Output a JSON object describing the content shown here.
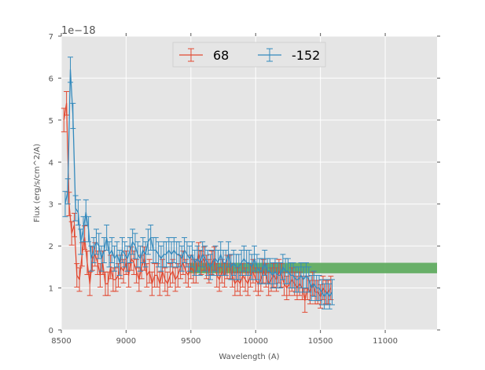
{
  "chart_data": {
    "type": "line",
    "xlabel": "Wavelength (A)",
    "ylabel": "Flux (erg/s/cm^2/A)",
    "offset_text": "1e−18",
    "xlim": [
      8500,
      11400
    ],
    "ylim": [
      0,
      7
    ],
    "x_ticks": [
      8500,
      9000,
      9500,
      10000,
      10500,
      11000
    ],
    "y_ticks": [
      0,
      1,
      2,
      3,
      4,
      5,
      6,
      7
    ],
    "grid": true,
    "legend_position": "top-center",
    "band": {
      "x_start": 9490,
      "x_end": 11400,
      "y_low": 1.35,
      "y_high": 1.6,
      "color": "#5aa85a"
    },
    "series": [
      {
        "name": "68",
        "color": "#e24a33",
        "x_start": 8520,
        "x_step": 20,
        "error": 0.28,
        "values": [
          5.0,
          5.4,
          3.0,
          2.3,
          2.5,
          1.3,
          1.2,
          1.8,
          2.2,
          1.6,
          1.1,
          1.7,
          1.8,
          1.6,
          1.3,
          1.6,
          1.1,
          1.1,
          1.5,
          1.2,
          1.2,
          1.3,
          1.5,
          1.4,
          1.6,
          1.3,
          1.7,
          1.6,
          1.4,
          1.2,
          1.5,
          1.7,
          1.3,
          1.4,
          1.1,
          1.3,
          1.3,
          1.1,
          1.4,
          1.2,
          1.1,
          1.3,
          1.4,
          1.2,
          1.3,
          1.5,
          1.6,
          1.4,
          1.3,
          1.5,
          1.4,
          1.4,
          1.8,
          1.6,
          1.7,
          1.5,
          1.4,
          1.6,
          1.7,
          1.3,
          1.2,
          1.4,
          1.3,
          1.5,
          1.5,
          1.3,
          1.1,
          1.2,
          1.1,
          1.3,
          1.2,
          1.1,
          1.3,
          1.4,
          1.2,
          1.1,
          1.2,
          1.4,
          1.3,
          1.1,
          1.2,
          1.3,
          1.2,
          1.4,
          1.3,
          1.1,
          1.0,
          1.1,
          1.2,
          1.1,
          1.0,
          1.1,
          1.0,
          0.7,
          1.0,
          0.9,
          1.1,
          0.9,
          0.9,
          0.8,
          1.0,
          0.9,
          0.9,
          1.0
        ]
      },
      {
        "name": "-152",
        "color": "#348abd",
        "x_start": 8530,
        "x_step": 20,
        "error": 0.3,
        "values": [
          3.0,
          3.3,
          6.2,
          5.1,
          2.9,
          2.8,
          2.1,
          2.4,
          2.8,
          2.4,
          1.7,
          1.9,
          2.1,
          2.0,
          1.7,
          1.9,
          2.2,
          1.8,
          1.9,
          1.7,
          1.8,
          1.6,
          1.9,
          1.8,
          1.7,
          1.9,
          2.1,
          2.0,
          1.8,
          1.7,
          1.9,
          1.8,
          2.1,
          2.2,
          1.9,
          1.9,
          1.8,
          1.7,
          1.8,
          1.8,
          1.9,
          1.8,
          1.9,
          1.8,
          1.8,
          1.7,
          1.9,
          1.8,
          1.7,
          1.8,
          1.6,
          1.7,
          1.6,
          1.8,
          1.7,
          1.6,
          1.5,
          1.6,
          1.7,
          1.6,
          1.8,
          1.6,
          1.6,
          1.8,
          1.5,
          1.6,
          1.5,
          1.5,
          1.6,
          1.7,
          1.6,
          1.6,
          1.5,
          1.7,
          1.5,
          1.4,
          1.4,
          1.6,
          1.4,
          1.4,
          1.3,
          1.4,
          1.3,
          1.3,
          1.5,
          1.4,
          1.4,
          1.3,
          1.3,
          1.2,
          1.2,
          1.3,
          1.2,
          1.3,
          1.2,
          1.0,
          1.1,
          1.0,
          1.0,
          0.9,
          0.8,
          0.9,
          0.8,
          0.9
        ]
      }
    ]
  }
}
